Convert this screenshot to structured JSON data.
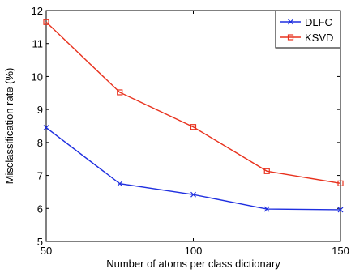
{
  "chart_data": {
    "type": "line",
    "title": "",
    "xlabel": "Number of atoms per class dictionary",
    "ylabel": "Misclassification rate (%)",
    "x": [
      50,
      75,
      100,
      125,
      150
    ],
    "xlim": [
      50,
      150
    ],
    "ylim": [
      5,
      12
    ],
    "xticks": [
      50,
      100,
      150
    ],
    "yticks": [
      5,
      6,
      7,
      8,
      9,
      10,
      11,
      12
    ],
    "grid": false,
    "legend_position": "top-right",
    "series": [
      {
        "name": "DLFC",
        "color": "#1f2fe0",
        "marker": "x",
        "values": [
          8.45,
          6.75,
          6.42,
          5.98,
          5.96
        ]
      },
      {
        "name": "KSVD",
        "color": "#e8321e",
        "marker": "square",
        "values": [
          11.65,
          9.52,
          8.47,
          7.13,
          6.76
        ]
      }
    ]
  }
}
